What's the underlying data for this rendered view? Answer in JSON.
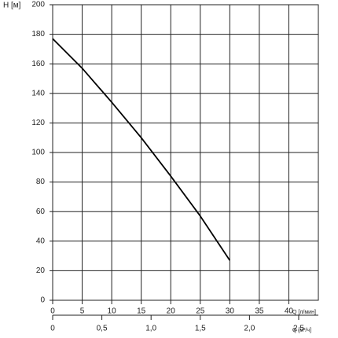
{
  "chart_data": {
    "type": "line",
    "ylabel": "H [м]",
    "xlabel": "Q [л/мин]",
    "x2label": "Q [м³/ч]",
    "x": [
      0,
      5,
      10,
      15,
      20,
      25,
      30
    ],
    "values": [
      177,
      157,
      134,
      110,
      84,
      57,
      27
    ],
    "color": "#000000",
    "xlim": [
      0,
      45
    ],
    "xticks": [
      0,
      5,
      10,
      15,
      20,
      25,
      30,
      35,
      40
    ],
    "ylim": [
      0,
      200
    ],
    "yticks": [
      0,
      20,
      40,
      60,
      80,
      100,
      120,
      140,
      160,
      180,
      200
    ],
    "x2lim": [
      0,
      2.7
    ],
    "x2ticks": [
      0,
      {
        "value": 0.5,
        "label": "0,5"
      },
      {
        "value": 1.0,
        "label": "1,0"
      },
      {
        "value": 1.5,
        "label": "1,5"
      },
      {
        "value": 2.0,
        "label": "2,0"
      },
      {
        "value": 2.5,
        "label": "2,5"
      }
    ],
    "grid": true
  }
}
